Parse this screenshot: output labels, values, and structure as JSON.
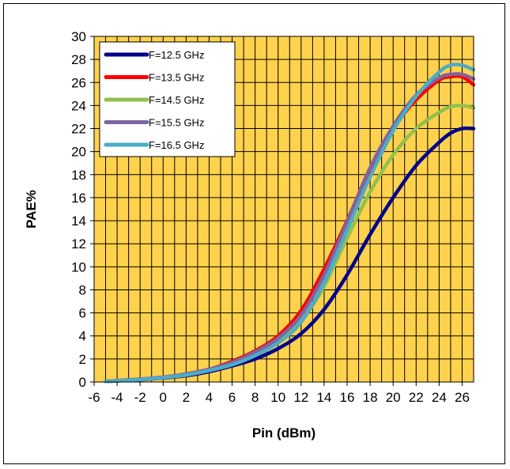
{
  "chart_data": {
    "type": "line",
    "xlabel": "Pin (dBm)",
    "ylabel": "PAE%",
    "xlim": [
      -6,
      27
    ],
    "ylim": [
      0,
      30
    ],
    "x_ticks": [
      -6,
      -4,
      -2,
      0,
      2,
      4,
      6,
      8,
      10,
      12,
      14,
      16,
      18,
      20,
      22,
      24,
      26
    ],
    "y_ticks": [
      0,
      2,
      4,
      6,
      8,
      10,
      12,
      14,
      16,
      18,
      20,
      22,
      24,
      26,
      28,
      30
    ],
    "grid": true,
    "plot_background": "#FFD24D",
    "gridline_color": "#000000",
    "legend_position": "top-left",
    "series": [
      {
        "name": "F=12.5 GHz",
        "color": "#00008B",
        "x": [
          -5,
          -4,
          -2,
          0,
          2,
          4,
          6,
          8,
          10,
          12,
          14,
          16,
          18,
          20,
          22,
          24,
          25,
          26,
          27
        ],
        "y": [
          0.05,
          0.1,
          0.2,
          0.35,
          0.55,
          0.9,
          1.4,
          2.0,
          2.9,
          4.2,
          6.3,
          9.3,
          12.8,
          16.0,
          18.8,
          20.8,
          21.6,
          22.0,
          22.0
        ]
      },
      {
        "name": "F=13.5 GHz",
        "color": "#FF0000",
        "x": [
          -5,
          -4,
          -2,
          0,
          2,
          4,
          6,
          8,
          10,
          12,
          14,
          16,
          18,
          20,
          22,
          24,
          25,
          26,
          27
        ],
        "y": [
          0.05,
          0.12,
          0.25,
          0.4,
          0.7,
          1.1,
          1.8,
          2.7,
          4.0,
          6.2,
          9.8,
          14.0,
          18.5,
          22.0,
          24.5,
          26.2,
          26.5,
          26.5,
          25.8
        ]
      },
      {
        "name": "F=14.5 GHz",
        "color": "#92C050",
        "x": [
          -5,
          -4,
          -2,
          0,
          2,
          4,
          6,
          8,
          10,
          12,
          14,
          16,
          18,
          20,
          22,
          24,
          25,
          26,
          27
        ],
        "y": [
          0.05,
          0.1,
          0.22,
          0.38,
          0.6,
          1.0,
          1.5,
          2.3,
          3.5,
          5.3,
          8.3,
          12.5,
          16.5,
          19.7,
          22.0,
          23.4,
          23.9,
          24.0,
          23.8
        ]
      },
      {
        "name": "F=15.5 GHz",
        "color": "#8064A2",
        "x": [
          -5,
          -4,
          -2,
          0,
          2,
          4,
          6,
          8,
          10,
          12,
          14,
          16,
          18,
          20,
          22,
          24,
          25,
          26,
          27
        ],
        "y": [
          0.05,
          0.12,
          0.25,
          0.42,
          0.7,
          1.1,
          1.7,
          2.6,
          3.8,
          5.8,
          9.3,
          13.9,
          18.6,
          22.2,
          24.9,
          26.4,
          26.7,
          26.7,
          26.3
        ]
      },
      {
        "name": "F=16.5 GHz",
        "color": "#4BACC6",
        "x": [
          -5,
          -4,
          -2,
          0,
          2,
          4,
          6,
          8,
          10,
          12,
          14,
          16,
          18,
          20,
          22,
          24,
          25,
          26,
          27
        ],
        "y": [
          0.05,
          0.1,
          0.22,
          0.38,
          0.62,
          1.0,
          1.5,
          2.3,
          3.4,
          5.2,
          8.6,
          13.2,
          17.8,
          21.8,
          24.8,
          26.9,
          27.5,
          27.5,
          27.1
        ]
      }
    ]
  }
}
